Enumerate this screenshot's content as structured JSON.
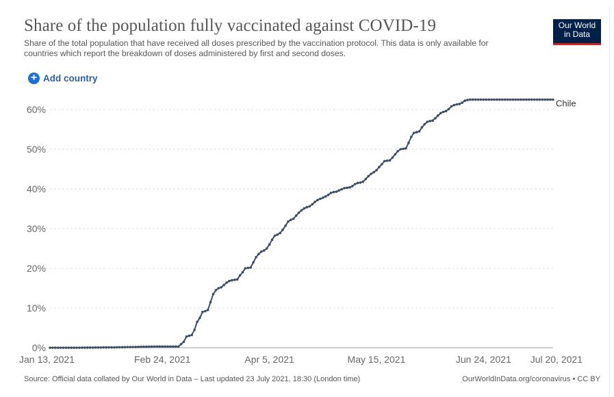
{
  "header": {
    "title": "Share of the population fully vaccinated against COVID-19",
    "subtitle": "Share of the total population that have received all doses prescribed by the vaccination protocol. This data is only available for countries which report the breakdown of doses administered by first and second doses.",
    "logo_line1": "Our World",
    "logo_line2": "in Data",
    "add_country_label": "Add country"
  },
  "footer": {
    "source": "Source: Official data collated by Our World in Data – Last updated 23 July 2021, 18:30 (London time)",
    "link": "OurWorldInData.org/coronavirus • CC BY"
  },
  "colors": {
    "line": "#3c4e66",
    "grid": "#dddddd",
    "axis_text": "#666666",
    "logo_bg": "#002147",
    "logo_bar": "#ce261e",
    "accent": "#1d6fd6"
  },
  "chart_data": {
    "type": "line",
    "title": "Share of the population fully vaccinated against COVID-19",
    "xlabel": "",
    "ylabel": "",
    "x_range": [
      "Jan 13, 2021",
      "Jul 20, 2021"
    ],
    "x_ticks": [
      "Jan 13, 2021",
      "Feb 24, 2021",
      "Apr 5, 2021",
      "May 15, 2021",
      "Jun 24, 2021",
      "Jul 20, 2021"
    ],
    "x_tick_days": [
      0,
      42,
      82,
      122,
      162,
      188
    ],
    "y_ticks": [
      "0%",
      "10%",
      "20%",
      "30%",
      "40%",
      "50%",
      "60%"
    ],
    "y_tick_values": [
      0,
      10,
      20,
      30,
      40,
      50,
      60
    ],
    "ylim": [
      0,
      60
    ],
    "grid": true,
    "series": [
      {
        "name": "Chile",
        "x_days": [
          0,
          10,
          25,
          40,
          48,
          50,
          51,
          52,
          53,
          54,
          55,
          56,
          57,
          58,
          59,
          60,
          61,
          62,
          63,
          64,
          65,
          66,
          67,
          68,
          69,
          70,
          71,
          72,
          73,
          74,
          75,
          76,
          77,
          78,
          79,
          80,
          81,
          82,
          83,
          84,
          85,
          86,
          87,
          88,
          89,
          90,
          91,
          92,
          93,
          94,
          95,
          96,
          97,
          98,
          99,
          100,
          101,
          102,
          103,
          104,
          105,
          106,
          107,
          108,
          109,
          110,
          111,
          112,
          113,
          114,
          115,
          116,
          117,
          118,
          119,
          120,
          121,
          122,
          123,
          124,
          125,
          126,
          127,
          128,
          129,
          130,
          131,
          132,
          133,
          134,
          135,
          136,
          137,
          138,
          139,
          140,
          141,
          142,
          143,
          144,
          145,
          146,
          147,
          148,
          149,
          150,
          151,
          152,
          153,
          154,
          155,
          156,
          157,
          158,
          159,
          160,
          161,
          162,
          163,
          164,
          165,
          166,
          167,
          168,
          169,
          170,
          171,
          172,
          173,
          174,
          175,
          176,
          177,
          178,
          179,
          180,
          181,
          182,
          183,
          184,
          185,
          186,
          187,
          188
        ],
        "values": [
          0,
          0,
          0.1,
          0.3,
          0.3,
          1.5,
          2.8,
          3.0,
          3.2,
          4.5,
          6.5,
          7.5,
          9.0,
          9.2,
          9.5,
          11.5,
          13.5,
          14.5,
          15.0,
          15.2,
          15.8,
          16.4,
          16.8,
          17.0,
          17.1,
          17.2,
          18.2,
          19.0,
          20.0,
          20.1,
          20.2,
          21.5,
          22.8,
          23.6,
          24.2,
          24.5,
          25.0,
          26.0,
          27.2,
          28.2,
          28.5,
          28.9,
          29.7,
          30.7,
          31.8,
          32.2,
          32.5,
          33.3,
          34.0,
          34.6,
          35.1,
          35.4,
          35.6,
          36.1,
          36.7,
          37.2,
          37.5,
          37.8,
          38.1,
          38.5,
          39.0,
          39.2,
          39.3,
          39.6,
          39.9,
          40.2,
          40.3,
          40.4,
          40.7,
          41.2,
          41.5,
          41.6,
          41.8,
          42.5,
          43.2,
          43.8,
          44.2,
          44.7,
          45.5,
          46.2,
          47.0,
          47.1,
          47.2,
          47.9,
          48.7,
          49.5,
          50.0,
          50.1,
          50.2,
          51.6,
          53.1,
          54.1,
          54.3,
          54.5,
          55.5,
          56.3,
          56.9,
          57.1,
          57.2,
          57.8,
          58.5,
          59.1,
          59.4,
          59.6,
          60.1,
          60.8,
          61.1,
          61.3,
          61.4,
          61.7,
          62.2,
          62.4,
          62.5,
          62.6,
          62.7,
          62.8,
          62.9,
          63.0,
          63.0,
          63.1,
          63.1,
          63.2,
          63.2,
          63.3,
          63.3,
          63.4,
          63.4,
          63.5,
          63.5,
          63.6,
          63.6,
          63.7,
          63.7,
          63.8,
          63.8,
          63.9,
          63.9,
          64.0,
          64.0,
          64.1,
          64.1,
          64.2,
          64.2,
          64.3
        ]
      }
    ]
  }
}
